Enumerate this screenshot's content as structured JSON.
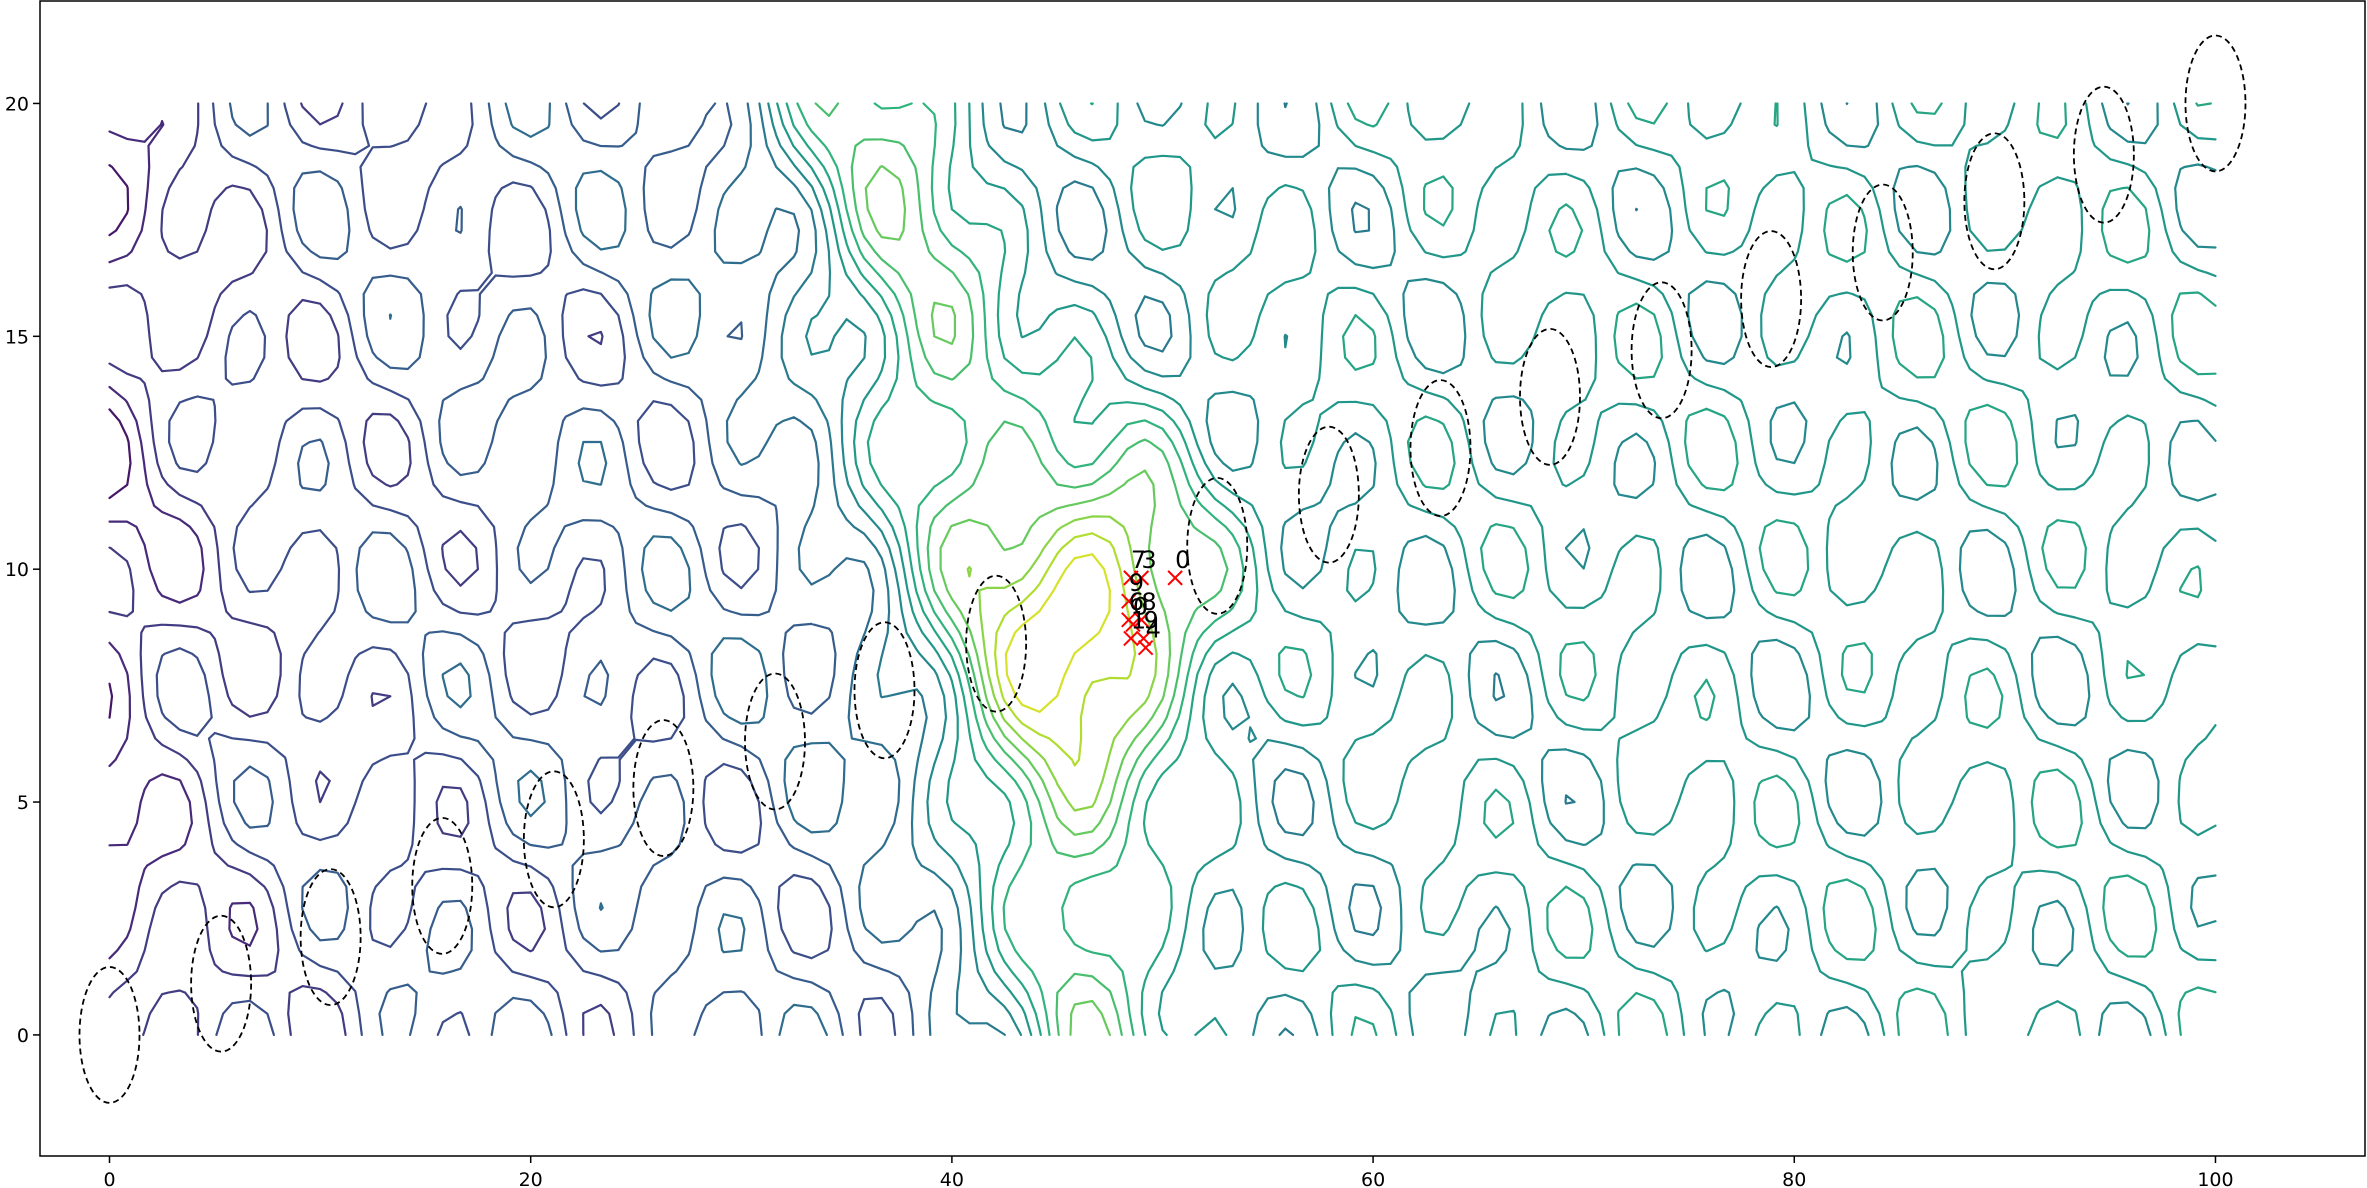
{
  "chart_data": {
    "type": "contour",
    "title": "",
    "xlabel": "",
    "ylabel": "",
    "xlim": [
      -3.3,
      107.1
    ],
    "ylim": [
      -2.6,
      22.2
    ],
    "xticks": [
      0,
      20,
      40,
      60,
      80,
      100
    ],
    "yticks": [
      0,
      5,
      10,
      15,
      20
    ],
    "grid": false,
    "colormap": "viridis",
    "contour_extent": {
      "x": [
        0,
        100
      ],
      "y": [
        0,
        20
      ]
    },
    "peak": {
      "x": 47.5,
      "y": 9.2
    },
    "ellipses": [
      {
        "x": 0.0,
        "y": 0.0
      },
      {
        "x": 5.3,
        "y": 1.1
      },
      {
        "x": 10.5,
        "y": 2.1
      },
      {
        "x": 15.8,
        "y": 3.2
      },
      {
        "x": 21.1,
        "y": 4.2
      },
      {
        "x": 26.3,
        "y": 5.3
      },
      {
        "x": 31.6,
        "y": 6.3
      },
      {
        "x": 36.8,
        "y": 7.4
      },
      {
        "x": 42.1,
        "y": 8.4
      },
      {
        "x": 52.6,
        "y": 10.5
      },
      {
        "x": 57.9,
        "y": 11.6
      },
      {
        "x": 63.2,
        "y": 12.6
      },
      {
        "x": 68.4,
        "y": 13.7
      },
      {
        "x": 73.7,
        "y": 14.7
      },
      {
        "x": 78.9,
        "y": 15.8
      },
      {
        "x": 84.2,
        "y": 16.8
      },
      {
        "x": 89.5,
        "y": 17.9
      },
      {
        "x": 94.7,
        "y": 18.9
      },
      {
        "x": 100.0,
        "y": 20.0
      }
    ],
    "markers": [
      {
        "x": 48.5,
        "y": 10.2,
        "label": "7"
      },
      {
        "x": 49.0,
        "y": 10.2,
        "label": "3"
      },
      {
        "x": 50.6,
        "y": 10.2,
        "label": "0"
      },
      {
        "x": 48.4,
        "y": 9.7,
        "label": "9"
      },
      {
        "x": 48.4,
        "y": 9.3,
        "label": "6"
      },
      {
        "x": 49.0,
        "y": 9.3,
        "label": "8"
      },
      {
        "x": 48.6,
        "y": 9.2,
        "label": "0"
      },
      {
        "x": 48.5,
        "y": 8.9,
        "label": "1"
      },
      {
        "x": 49.1,
        "y": 8.9,
        "label": "9"
      },
      {
        "x": 49.2,
        "y": 8.7,
        "label": "4"
      }
    ]
  }
}
